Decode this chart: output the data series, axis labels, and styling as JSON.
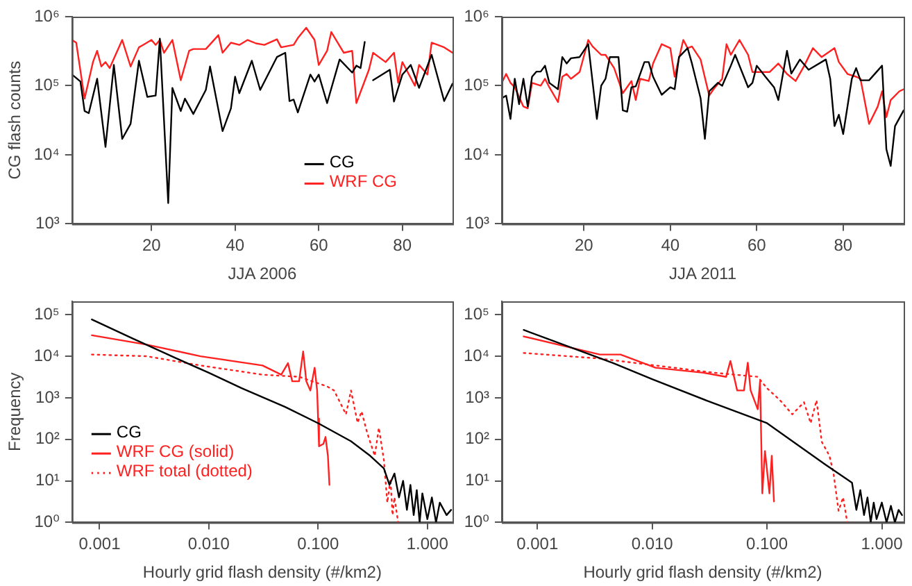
{
  "chart_data": [
    {
      "type": "line",
      "xlabel": "JJA 2006",
      "ylabel": "CG flash counts",
      "log": "y",
      "legend": "bottom right",
      "xlim": [
        1,
        92
      ],
      "xticks": [
        20,
        40,
        60,
        80
      ],
      "ylim": [
        1000,
        1000000
      ],
      "yticks": [
        {
          "value": 1000,
          "label": "10³"
        },
        {
          "value": 10000,
          "label": "10⁴"
        },
        {
          "value": 100000,
          "label": "10⁵"
        },
        {
          "value": 1000000,
          "label": "10⁶"
        }
      ],
      "series": [
        {
          "name": "CG",
          "color": "#000000",
          "x": [
            1,
            3,
            4,
            5,
            7,
            9,
            11,
            13,
            15,
            17,
            19,
            21,
            22,
            24,
            25,
            27,
            28,
            30,
            33,
            34,
            37,
            39,
            40,
            41,
            44,
            46,
            50,
            52,
            53,
            54,
            55,
            58,
            59,
            60,
            62,
            65,
            68,
            69,
            70,
            71,
            72,
            73,
            77,
            78,
            80,
            82,
            84,
            87,
            90,
            92
          ],
          "values": [
            145000.0,
            115000.0,
            43000.0,
            40000.0,
            126000.0,
            13000.0,
            200000.0,
            17000.0,
            28000.0,
            230000.0,
            69000.0,
            72000.0,
            480000.0,
            2000.0,
            93000.0,
            43000.0,
            65000.0,
            39000.0,
            87000.0,
            190000.0,
            22000.0,
            47000.0,
            135000.0,
            78000.0,
            230000.0,
            87000.0,
            260000.0,
            300000.0,
            60000.0,
            63000.0,
            41000.0,
            145000.0,
            115000.0,
            145000.0,
            56000.0,
            240000.0,
            155000.0,
            195000.0,
            180000.0,
            430000.0,
            null,
            120000.0,
            170000.0,
            59000.0,
            145000.0,
            200000.0,
            93000.0,
            280000.0,
            60000.0,
            107000.0
          ]
        },
        {
          "name": "WRF CG",
          "color": "#ff2020",
          "x": [
            1,
            2,
            4,
            6,
            7,
            8,
            9,
            10,
            13,
            15,
            17,
            18,
            20,
            21,
            22,
            23,
            25,
            27,
            29,
            30,
            33,
            36,
            37,
            39,
            41,
            43,
            45,
            47,
            50,
            51,
            54,
            55,
            57,
            59,
            60,
            62,
            63,
            66,
            68,
            69,
            72,
            73,
            76,
            78,
            79,
            80,
            83,
            84,
            86,
            87,
            90,
            92
          ],
          "values": [
            460000.0,
            420000.0,
            65000.0,
            220000.0,
            320000.0,
            190000.0,
            220000.0,
            180000.0,
            460000.0,
            190000.0,
            360000.0,
            390000.0,
            460000.0,
            390000.0,
            460000.0,
            300000.0,
            460000.0,
            120000.0,
            320000.0,
            340000.0,
            340000.0,
            540000.0,
            300000.0,
            420000.0,
            390000.0,
            460000.0,
            410000.0,
            390000.0,
            470000.0,
            360000.0,
            390000.0,
            490000.0,
            690000.0,
            460000.0,
            200000.0,
            320000.0,
            600000.0,
            300000.0,
            320000.0,
            56000.0,
            170000.0,
            300000.0,
            220000.0,
            300000.0,
            110000.0,
            220000.0,
            100000.0,
            200000.0,
            145000.0,
            420000.0,
            360000.0,
            300000.0
          ]
        }
      ]
    },
    {
      "type": "line",
      "xlabel": "JJA 2011",
      "log": "y",
      "xlim": [
        1,
        94
      ],
      "xticks": [
        20,
        40,
        60,
        80
      ],
      "ylim": [
        1000,
        1000000
      ],
      "yticks": [
        {
          "value": 1000,
          "label": "10³"
        },
        {
          "value": 10000,
          "label": "10⁴"
        },
        {
          "value": 100000,
          "label": "10⁵"
        },
        {
          "value": 1000000,
          "label": "10⁶"
        }
      ],
      "series": [
        {
          "color": "#000000",
          "x": [
            1,
            2,
            3,
            4,
            5,
            6,
            7,
            8,
            9,
            10,
            11,
            12,
            14,
            15,
            16,
            17,
            19,
            21,
            23,
            24,
            25,
            26,
            28,
            29,
            30,
            31,
            32,
            34,
            35,
            36,
            38,
            40,
            41,
            42,
            44,
            45,
            47,
            48,
            49,
            51,
            52,
            54,
            55,
            58,
            59,
            60,
            62,
            64,
            65,
            67,
            68,
            70,
            72,
            76,
            77,
            78,
            79,
            80,
            82,
            83,
            84,
            86,
            89,
            90,
            91,
            92,
            94
          ],
          "values": [
            66000.0,
            72000.0,
            33000.0,
            126000.0,
            54000.0,
            126000.0,
            50000.0,
            135000.0,
            160000.0,
            160000.0,
            195000.0,
            110000.0,
            89000.0,
            260000.0,
            210000.0,
            250000.0,
            260000.0,
            400000.0,
            33000.0,
            100000.0,
            126000.0,
            260000.0,
            260000.0,
            44000.0,
            42000.0,
            95000.0,
            98000.0,
            220000.0,
            220000.0,
            135000.0,
            74000.0,
            95000.0,
            89000.0,
            260000.0,
            350000.0,
            210000.0,
            66000.0,
            17000.0,
            83000.0,
            110000.0,
            100000.0,
            195000.0,
            280000.0,
            95000.0,
            110000.0,
            195000.0,
            135000.0,
            95000.0,
            62000.0,
            320000.0,
            150000.0,
            240000.0,
            170000.0,
            240000.0,
            126000.0,
            26000.0,
            38000.0,
            20000.0,
            126000.0,
            180000.0,
            120000.0,
            120000.0,
            195000.0,
            12000.0,
            6900.0,
            26000.0,
            44000.0
          ]
        },
        {
          "color": "#ff2020",
          "x": [
            1,
            2,
            3,
            4,
            6,
            7,
            8,
            10,
            11,
            12,
            14,
            15,
            16,
            17,
            19,
            21,
            22,
            24,
            25,
            27,
            29,
            31,
            32,
            33,
            35,
            36,
            38,
            40,
            41,
            43,
            44,
            45,
            47,
            49,
            50,
            52,
            53,
            54,
            56,
            58,
            59,
            61,
            63,
            65,
            67,
            69,
            71,
            73,
            75,
            78,
            79,
            81,
            83,
            84,
            86,
            88,
            89,
            90,
            91,
            93,
            94
          ],
          "values": [
            110000.0,
            148000.0,
            110000.0,
            95000.0,
            50000.0,
            47000.0,
            110000.0,
            100000.0,
            126000.0,
            95000.0,
            58000.0,
            135000.0,
            148000.0,
            126000.0,
            158000.0,
            460000.0,
            370000.0,
            280000.0,
            280000.0,
            180000.0,
            78000.0,
            117000.0,
            62000.0,
            126000.0,
            117000.0,
            210000.0,
            400000.0,
            350000.0,
            135000.0,
            460000.0,
            350000.0,
            370000.0,
            240000.0,
            72000.0,
            89000.0,
            126000.0,
            400000.0,
            280000.0,
            460000.0,
            280000.0,
            158000.0,
            158000.0,
            158000.0,
            210000.0,
            148000.0,
            117000.0,
            195000.0,
            350000.0,
            260000.0,
            350000.0,
            220000.0,
            148000.0,
            135000.0,
            126000.0,
            28000.0,
            50000.0,
            83000.0,
            35000.0,
            62000.0,
            83000.0,
            89000.0
          ]
        }
      ]
    },
    {
      "type": "line",
      "xlabel": "Hourly grid flash density (#/km2)",
      "ylabel": "Frequency",
      "log": "xy",
      "legend": "left",
      "xlim": [
        0.00056,
        1.7
      ],
      "xticks": [
        {
          "value": 0.001,
          "label": "0.001"
        },
        {
          "value": 0.01,
          "label": "0.010"
        },
        {
          "value": 0.1,
          "label": "0.100"
        },
        {
          "value": 1,
          "label": "1.000"
        }
      ],
      "ylim": [
        1,
        210000
      ],
      "yticks": [
        {
          "value": 1,
          "label": "10⁰"
        },
        {
          "value": 10,
          "label": "10¹"
        },
        {
          "value": 100,
          "label": "10²"
        },
        {
          "value": 1000,
          "label": "10³"
        },
        {
          "value": 10000,
          "label": "10⁴"
        },
        {
          "value": 100000,
          "label": "10⁵"
        }
      ],
      "series": [
        {
          "name": "CG",
          "color": "#000000",
          "x": [
            0.00085,
            0.002,
            0.005,
            0.01,
            0.02,
            0.05,
            0.1,
            0.2,
            0.3,
            0.4,
            0.45,
            0.5,
            0.55,
            0.6,
            0.65,
            0.7,
            0.75,
            0.8,
            0.85,
            0.9,
            1.0,
            1.1,
            1.2,
            1.3,
            1.5,
            1.65
          ],
          "values": [
            77000.0,
            27000.0,
            9000.0,
            4000.0,
            1700.0,
            600,
            245,
            90,
            40,
            20,
            8,
            15,
            4,
            10,
            2,
            8,
            1.5,
            6,
            1,
            5,
            1.2,
            4,
            1,
            3,
            1.5,
            2
          ]
        },
        {
          "name": "WRF CG (solid)",
          "color": "#ff2020",
          "line_style": "solid",
          "x": [
            0.00085,
            0.0027,
            0.0084,
            0.031,
            0.046,
            0.053,
            0.058,
            0.067,
            0.073,
            0.078,
            0.085,
            0.093,
            0.098,
            0.1,
            0.102,
            0.112,
            0.117,
            0.123,
            0.127
          ],
          "values": [
            32000.0,
            19000.0,
            10000.0,
            6000.0,
            3600.0,
            6800.0,
            2500.0,
            2500.0,
            13000.0,
            2500.0,
            1500.0,
            5300.0,
            1500.0,
            316,
            68,
            78,
            114,
            40,
            8
          ]
        },
        {
          "name": "WRF total (dotted)",
          "color": "#ff2020",
          "line_style": "dotted",
          "x": [
            0.00085,
            0.0027,
            0.0084,
            0.031,
            0.067,
            0.12,
            0.14,
            0.18,
            0.2,
            0.23,
            0.25,
            0.28,
            0.33,
            0.36,
            0.4,
            0.43,
            0.46,
            0.48,
            0.5,
            0.52,
            0.54
          ],
          "values": [
            11000.0,
            10000.0,
            6000.0,
            3600.0,
            3200.0,
            1900.0,
            1500.0,
            400,
            1500.0,
            250,
            470,
            150,
            40,
            190,
            32,
            3,
            11,
            1.5,
            4,
            2,
            1
          ]
        }
      ]
    },
    {
      "type": "line",
      "xlabel": "Hourly grid flash density (#/km2)",
      "log": "xy",
      "xlim": [
        0.00049,
        1.55
      ],
      "xticks": [
        {
          "value": 0.001,
          "label": "0.001"
        },
        {
          "value": 0.01,
          "label": "0.010"
        },
        {
          "value": 0.1,
          "label": "0.100"
        },
        {
          "value": 1,
          "label": "1.000"
        }
      ],
      "ylim": [
        1,
        210000
      ],
      "yticks": [
        {
          "value": 1,
          "label": "10⁰"
        },
        {
          "value": 10,
          "label": "10¹"
        },
        {
          "value": 100,
          "label": "10²"
        },
        {
          "value": 1000,
          "label": "10³"
        },
        {
          "value": 10000,
          "label": "10⁴"
        },
        {
          "value": 100000,
          "label": "10⁵"
        }
      ],
      "series": [
        {
          "color": "#000000",
          "x": [
            0.00076,
            0.0046,
            0.01,
            0.03,
            0.1,
            0.32,
            0.55,
            0.6,
            0.65,
            0.7,
            0.75,
            0.8,
            0.85,
            0.9,
            1.0,
            1.1,
            1.2,
            1.3,
            1.4,
            1.5
          ],
          "values": [
            43000.0,
            6800.0,
            2800.0,
            850,
            245,
            25,
            9,
            2,
            6,
            1.5,
            4,
            1,
            3,
            1.2,
            3,
            1,
            2.5,
            1,
            2,
            1.5
          ]
        },
        {
          "color": "#ff2020",
          "line_style": "solid",
          "x": [
            0.00076,
            0.0035,
            0.0053,
            0.0107,
            0.028,
            0.044,
            0.048,
            0.055,
            0.063,
            0.068,
            0.072,
            0.083,
            0.087,
            0.091,
            0.096,
            0.105,
            0.11,
            0.115
          ],
          "values": [
            30000.0,
            11000.0,
            11000.0,
            5300.0,
            4000.0,
            3200.0,
            7700.0,
            1500.0,
            1500.0,
            7000.0,
            1500.0,
            530,
            2500.0,
            5,
            52,
            5,
            40,
            3.2
          ]
        },
        {
          "color": "#ff2020",
          "line_style": "dotted",
          "x": [
            0.00076,
            0.0035,
            0.0107,
            0.035,
            0.083,
            0.1,
            0.13,
            0.166,
            0.21,
            0.24,
            0.27,
            0.3,
            0.35,
            0.38,
            0.42,
            0.46,
            0.5
          ],
          "values": [
            12000.0,
            8800.0,
            6000.0,
            4000.0,
            3200.0,
            1700.0,
            870,
            400,
            780,
            245,
            870,
            87,
            40,
            15,
            1.9,
            4,
            1
          ]
        }
      ]
    }
  ]
}
